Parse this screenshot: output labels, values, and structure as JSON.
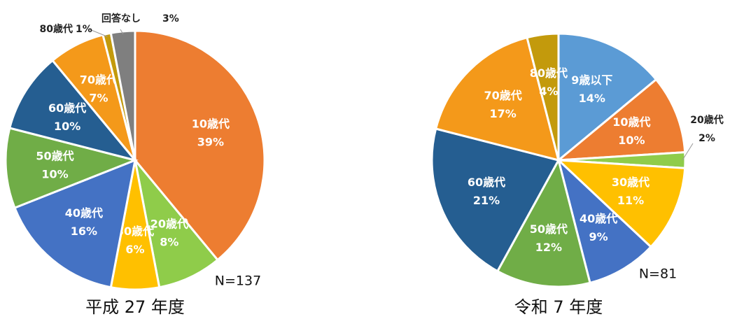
{
  "chart_data": [
    {
      "type": "pie",
      "title": "平成 27 年度",
      "annotation": "N=137",
      "categories": [
        "10歳代",
        "20歳代",
        "30歳代",
        "40歳代",
        "50歳代",
        "60歳代",
        "70歳代",
        "80歳代",
        "回答なし"
      ],
      "values": [
        39,
        8,
        6,
        16,
        10,
        10,
        7,
        1,
        3
      ],
      "value_labels": [
        "39%",
        "8%",
        "6%",
        "16%",
        "10%",
        "10%",
        "7%",
        "1%",
        "3%"
      ],
      "colors": [
        "#ed7d31",
        "#8fcc4a",
        "#ffc000",
        "#4472c4",
        "#70ad47",
        "#255e91",
        "#f4991a",
        "#c39a0c",
        "#7f7f7f"
      ]
    },
    {
      "type": "pie",
      "title": "令和 7 年度",
      "annotation": "N=81",
      "categories": [
        "9歳以下",
        "10歳代",
        "20歳代",
        "30歳代",
        "40歳代",
        "50歳代",
        "60歳代",
        "70歳代",
        "80歳代"
      ],
      "values": [
        14,
        10,
        2,
        11,
        9,
        12,
        21,
        17,
        4
      ],
      "value_labels": [
        "14%",
        "10%",
        "2%",
        "11%",
        "9%",
        "12%",
        "21%",
        "17%",
        "4%"
      ],
      "colors": [
        "#5b9bd5",
        "#ed7d31",
        "#8fcc4a",
        "#ffc000",
        "#4472c4",
        "#70ad47",
        "#255e91",
        "#f4991a",
        "#c39a0c"
      ]
    }
  ]
}
